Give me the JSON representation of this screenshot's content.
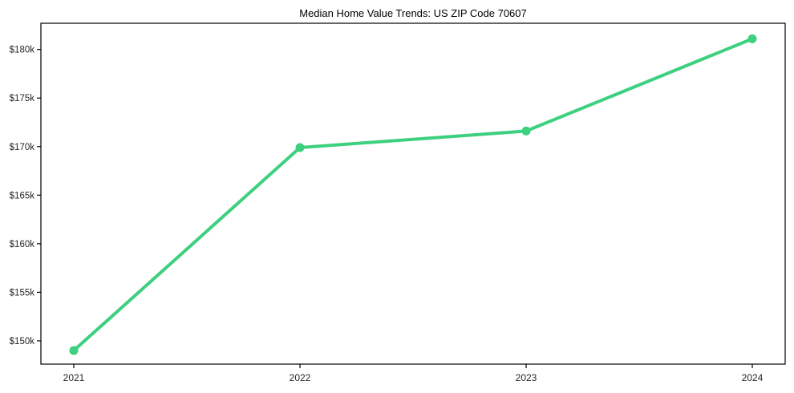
{
  "chart_data": {
    "type": "line",
    "title": "Median Home Value Trends: US ZIP Code 70607",
    "x": [
      2021,
      2022,
      2023,
      2024
    ],
    "values": [
      149000,
      169900,
      171600,
      181100
    ],
    "xtick_labels": [
      "2021",
      "2022",
      "2023",
      "2024"
    ],
    "yticks": [
      150000,
      155000,
      160000,
      165000,
      170000,
      175000,
      180000
    ],
    "ytick_labels": [
      "$150k",
      "$155k",
      "$160k",
      "$165k",
      "$170k",
      "$175k",
      "$180k"
    ],
    "ylim": [
      147600,
      182700
    ],
    "grid": false,
    "legend": null,
    "line_color": "#3dd07f",
    "marker": "circle",
    "axis_color": "#000000",
    "tick_label_color": "#262626",
    "background_color": "#ffffff"
  }
}
